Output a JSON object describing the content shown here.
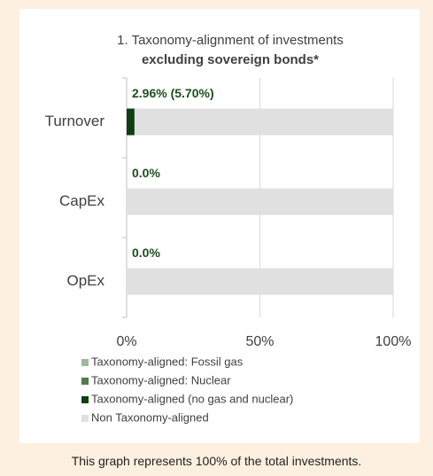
{
  "chart_data": {
    "type": "bar",
    "orientation": "horizontal",
    "stacked": true,
    "title": "1. Taxonomy-alignment of investments",
    "subtitle": "excluding sovereign bonds*",
    "categories": [
      "Turnover",
      "CapEx",
      "OpEx"
    ],
    "series": [
      {
        "name": "Taxonomy-aligned: Fossil gas",
        "color": "#9fb89c",
        "values": [
          0,
          0,
          0
        ]
      },
      {
        "name": "Taxonomy-aligned: Nuclear",
        "color": "#4f7c4f",
        "values": [
          0,
          0,
          0
        ]
      },
      {
        "name": "Taxonomy-aligned (no gas and nuclear)",
        "color": "#0e3f12",
        "values": [
          2.96,
          0,
          0
        ],
        "value_labels": [
          "2.96% (5.70%)",
          "0.0%",
          "0.0%"
        ]
      },
      {
        "name": "Non Taxonomy-aligned",
        "color": "#e0e0e0",
        "values": [
          97.04,
          100,
          100
        ]
      }
    ],
    "xlim": [
      0,
      100
    ],
    "xticks": [
      {
        "value": 0,
        "label": "0%"
      },
      {
        "value": 50,
        "label": "50%"
      },
      {
        "value": 100,
        "label": "100%"
      }
    ],
    "grid": true,
    "legend": "bottom",
    "note": "This graph represents 100% of the total investments."
  }
}
